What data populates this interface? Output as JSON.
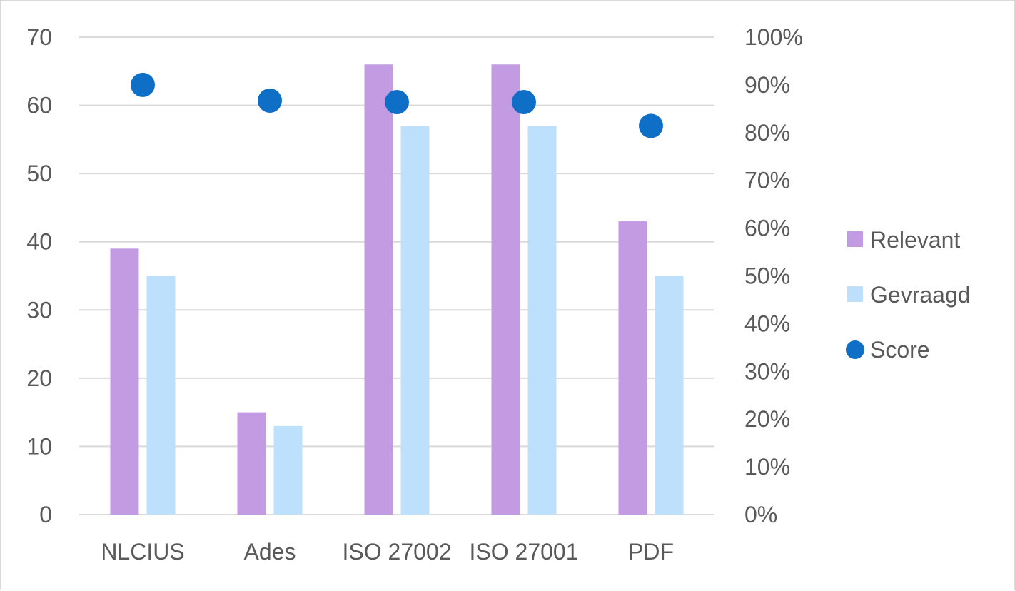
{
  "chart_data": {
    "type": "bar",
    "categories": [
      "NLCIUS",
      "Ades",
      "ISO 27002",
      "ISO 27001",
      "PDF"
    ],
    "series": [
      {
        "name": "Relevant",
        "type": "bar",
        "axis": "left",
        "color": "#c39be3",
        "values": [
          39,
          15,
          66,
          66,
          43
        ]
      },
      {
        "name": "Gevraagd",
        "type": "bar",
        "axis": "left",
        "color": "#bde0fd",
        "values": [
          35,
          13,
          57,
          57,
          35
        ]
      },
      {
        "name": "Score",
        "type": "scatter",
        "axis": "right",
        "color": "#0f6fc6",
        "values": [
          0.9,
          0.867,
          0.864,
          0.864,
          0.814
        ]
      }
    ],
    "y_left": {
      "min": 0,
      "max": 70,
      "ticks": [
        "0",
        "10",
        "20",
        "30",
        "40",
        "50",
        "60",
        "70"
      ]
    },
    "y_right": {
      "min": 0,
      "max": 1,
      "ticks": [
        "0%",
        "10%",
        "20%",
        "30%",
        "40%",
        "50%",
        "60%",
        "70%",
        "80%",
        "90%",
        "100%"
      ]
    },
    "grid": true,
    "legend_position": "right",
    "title": "",
    "xlabel": "",
    "ylabel": ""
  },
  "legend": {
    "items": [
      {
        "label": "Relevant",
        "icon": "square",
        "color": "#c39be3"
      },
      {
        "label": "Gevraagd",
        "icon": "square",
        "color": "#bde0fd"
      },
      {
        "label": "Score",
        "icon": "circle",
        "color": "#0f6fc6"
      }
    ]
  }
}
